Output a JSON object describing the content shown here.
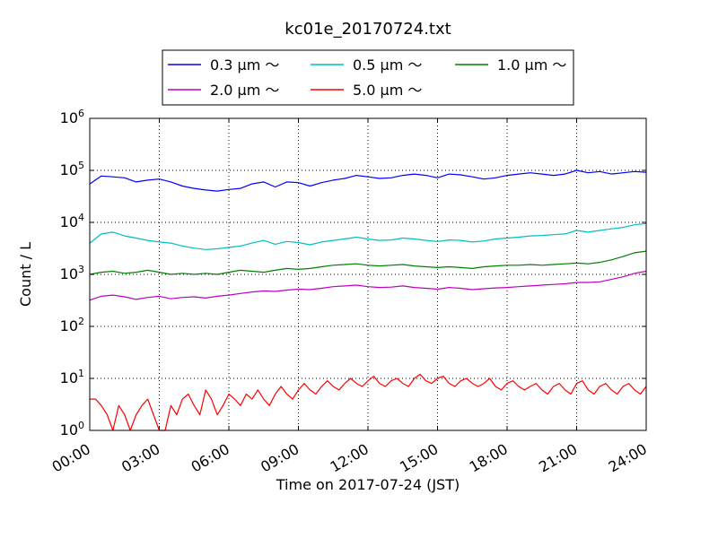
{
  "chart_data": {
    "type": "line",
    "title": "kc01e_20170724.txt",
    "xlabel": "Time on 2017-07-24 (JST)",
    "ylabel": "Count / L",
    "yscale": "log",
    "ylim": [
      1,
      1000000
    ],
    "xlim_hours": [
      0,
      24
    ],
    "x_ticks": [
      "00:00",
      "03:00",
      "06:00",
      "09:00",
      "12:00",
      "15:00",
      "18:00",
      "21:00",
      "24:00"
    ],
    "y_ticks": [
      {
        "base": "10",
        "exp": "0"
      },
      {
        "base": "10",
        "exp": "1"
      },
      {
        "base": "10",
        "exp": "2"
      },
      {
        "base": "10",
        "exp": "3"
      },
      {
        "base": "10",
        "exp": "4"
      },
      {
        "base": "10",
        "exp": "5"
      },
      {
        "base": "10",
        "exp": "6"
      }
    ],
    "grid": true,
    "legend_position": "top-center",
    "series": [
      {
        "name": "0.3 μm ～",
        "color": "#0000ff",
        "points": [
          [
            0,
            55000
          ],
          [
            0.5,
            78000
          ],
          [
            1,
            75000
          ],
          [
            1.5,
            72000
          ],
          [
            2,
            60000
          ],
          [
            2.5,
            65000
          ],
          [
            3,
            68000
          ],
          [
            3.5,
            60000
          ],
          [
            4,
            50000
          ],
          [
            4.5,
            45000
          ],
          [
            5,
            42000
          ],
          [
            5.5,
            40000
          ],
          [
            6,
            43000
          ],
          [
            6.5,
            45000
          ],
          [
            7,
            55000
          ],
          [
            7.5,
            60000
          ],
          [
            8,
            48000
          ],
          [
            8.5,
            60000
          ],
          [
            9,
            58000
          ],
          [
            9.5,
            50000
          ],
          [
            10,
            58000
          ],
          [
            10.5,
            65000
          ],
          [
            11,
            70000
          ],
          [
            11.5,
            80000
          ],
          [
            12,
            75000
          ],
          [
            12.5,
            70000
          ],
          [
            13,
            72000
          ],
          [
            13.5,
            80000
          ],
          [
            14,
            85000
          ],
          [
            14.5,
            80000
          ],
          [
            15,
            72000
          ],
          [
            15.5,
            85000
          ],
          [
            16,
            82000
          ],
          [
            16.5,
            75000
          ],
          [
            17,
            68000
          ],
          [
            17.5,
            72000
          ],
          [
            18,
            80000
          ],
          [
            18.5,
            85000
          ],
          [
            19,
            90000
          ],
          [
            19.5,
            85000
          ],
          [
            20,
            80000
          ],
          [
            20.5,
            85000
          ],
          [
            21,
            100000
          ],
          [
            21.5,
            90000
          ],
          [
            22,
            95000
          ],
          [
            22.5,
            85000
          ],
          [
            23,
            90000
          ],
          [
            23.5,
            95000
          ],
          [
            24,
            92000
          ]
        ]
      },
      {
        "name": "0.5 μm ～",
        "color": "#00bfbf",
        "points": [
          [
            0,
            4000
          ],
          [
            0.5,
            6000
          ],
          [
            1,
            6500
          ],
          [
            1.5,
            5500
          ],
          [
            2,
            5000
          ],
          [
            2.5,
            4500
          ],
          [
            3,
            4200
          ],
          [
            3.5,
            4000
          ],
          [
            4,
            3500
          ],
          [
            4.5,
            3200
          ],
          [
            5,
            3000
          ],
          [
            5.5,
            3100
          ],
          [
            6,
            3300
          ],
          [
            6.5,
            3500
          ],
          [
            7,
            4000
          ],
          [
            7.5,
            4500
          ],
          [
            8,
            3800
          ],
          [
            8.5,
            4300
          ],
          [
            9,
            4100
          ],
          [
            9.5,
            3700
          ],
          [
            10,
            4200
          ],
          [
            10.5,
            4500
          ],
          [
            11,
            4800
          ],
          [
            11.5,
            5200
          ],
          [
            12,
            4800
          ],
          [
            12.5,
            4500
          ],
          [
            13,
            4600
          ],
          [
            13.5,
            5000
          ],
          [
            14,
            4800
          ],
          [
            14.5,
            4500
          ],
          [
            15,
            4300
          ],
          [
            15.5,
            4600
          ],
          [
            16,
            4500
          ],
          [
            16.5,
            4200
          ],
          [
            17,
            4400
          ],
          [
            17.5,
            4800
          ],
          [
            18,
            5000
          ],
          [
            18.5,
            5200
          ],
          [
            19,
            5500
          ],
          [
            19.5,
            5600
          ],
          [
            20,
            5800
          ],
          [
            20.5,
            6000
          ],
          [
            21,
            7000
          ],
          [
            21.5,
            6500
          ],
          [
            22,
            7000
          ],
          [
            22.5,
            7500
          ],
          [
            23,
            8000
          ],
          [
            23.5,
            9000
          ],
          [
            24,
            9500
          ]
        ]
      },
      {
        "name": "1.0 μm ～",
        "color": "#008000",
        "points": [
          [
            0,
            1000
          ],
          [
            0.5,
            1100
          ],
          [
            1,
            1150
          ],
          [
            1.5,
            1050
          ],
          [
            2,
            1100
          ],
          [
            2.5,
            1200
          ],
          [
            3,
            1100
          ],
          [
            3.5,
            1000
          ],
          [
            4,
            1050
          ],
          [
            4.5,
            1000
          ],
          [
            5,
            1050
          ],
          [
            5.5,
            1000
          ],
          [
            6,
            1100
          ],
          [
            6.5,
            1200
          ],
          [
            7,
            1150
          ],
          [
            7.5,
            1100
          ],
          [
            8,
            1200
          ],
          [
            8.5,
            1300
          ],
          [
            9,
            1250
          ],
          [
            9.5,
            1300
          ],
          [
            10,
            1400
          ],
          [
            10.5,
            1500
          ],
          [
            11,
            1550
          ],
          [
            11.5,
            1600
          ],
          [
            12,
            1500
          ],
          [
            12.5,
            1450
          ],
          [
            13,
            1500
          ],
          [
            13.5,
            1550
          ],
          [
            14,
            1450
          ],
          [
            14.5,
            1400
          ],
          [
            15,
            1350
          ],
          [
            15.5,
            1400
          ],
          [
            16,
            1350
          ],
          [
            16.5,
            1300
          ],
          [
            17,
            1400
          ],
          [
            17.5,
            1450
          ],
          [
            18,
            1500
          ],
          [
            18.5,
            1500
          ],
          [
            19,
            1550
          ],
          [
            19.5,
            1500
          ],
          [
            20,
            1550
          ],
          [
            20.5,
            1600
          ],
          [
            21,
            1650
          ],
          [
            21.5,
            1600
          ],
          [
            22,
            1700
          ],
          [
            22.5,
            1900
          ],
          [
            23,
            2200
          ],
          [
            23.5,
            2600
          ],
          [
            24,
            2800
          ]
        ]
      },
      {
        "name": "2.0 μm ～",
        "color": "#bf00bf",
        "points": [
          [
            0,
            320
          ],
          [
            0.5,
            380
          ],
          [
            1,
            400
          ],
          [
            1.5,
            370
          ],
          [
            2,
            330
          ],
          [
            2.5,
            360
          ],
          [
            3,
            380
          ],
          [
            3.5,
            340
          ],
          [
            4,
            360
          ],
          [
            4.5,
            370
          ],
          [
            5,
            350
          ],
          [
            5.5,
            380
          ],
          [
            6,
            400
          ],
          [
            6.5,
            430
          ],
          [
            7,
            460
          ],
          [
            7.5,
            480
          ],
          [
            8,
            470
          ],
          [
            8.5,
            500
          ],
          [
            9,
            520
          ],
          [
            9.5,
            510
          ],
          [
            10,
            540
          ],
          [
            10.5,
            580
          ],
          [
            11,
            600
          ],
          [
            11.5,
            620
          ],
          [
            12,
            580
          ],
          [
            12.5,
            560
          ],
          [
            13,
            570
          ],
          [
            13.5,
            600
          ],
          [
            14,
            560
          ],
          [
            14.5,
            540
          ],
          [
            15,
            520
          ],
          [
            15.5,
            560
          ],
          [
            16,
            540
          ],
          [
            16.5,
            510
          ],
          [
            17,
            530
          ],
          [
            17.5,
            550
          ],
          [
            18,
            560
          ],
          [
            18.5,
            580
          ],
          [
            19,
            600
          ],
          [
            19.5,
            620
          ],
          [
            20,
            640
          ],
          [
            20.5,
            660
          ],
          [
            21,
            700
          ],
          [
            21.5,
            700
          ],
          [
            22,
            720
          ],
          [
            22.5,
            800
          ],
          [
            23,
            900
          ],
          [
            23.5,
            1050
          ],
          [
            24,
            1150
          ]
        ]
      },
      {
        "name": "5.0 μm ～",
        "color": "#ff0000",
        "points": [
          [
            0,
            4
          ],
          [
            0.25,
            4
          ],
          [
            0.5,
            3
          ],
          [
            0.75,
            2
          ],
          [
            1,
            1
          ],
          [
            1.25,
            3
          ],
          [
            1.5,
            2
          ],
          [
            1.75,
            1
          ],
          [
            2,
            2
          ],
          [
            2.25,
            3
          ],
          [
            2.5,
            4
          ],
          [
            2.75,
            2
          ],
          [
            3,
            1
          ],
          [
            3.25,
            1
          ],
          [
            3.5,
            3
          ],
          [
            3.75,
            2
          ],
          [
            4,
            4
          ],
          [
            4.25,
            5
          ],
          [
            4.5,
            3
          ],
          [
            4.75,
            2
          ],
          [
            5,
            6
          ],
          [
            5.25,
            4
          ],
          [
            5.5,
            2
          ],
          [
            5.75,
            3
          ],
          [
            6,
            5
          ],
          [
            6.25,
            4
          ],
          [
            6.5,
            3
          ],
          [
            6.75,
            5
          ],
          [
            7,
            4
          ],
          [
            7.25,
            6
          ],
          [
            7.5,
            4
          ],
          [
            7.75,
            3
          ],
          [
            8,
            5
          ],
          [
            8.25,
            7
          ],
          [
            8.5,
            5
          ],
          [
            8.75,
            4
          ],
          [
            9,
            6
          ],
          [
            9.25,
            8
          ],
          [
            9.5,
            6
          ],
          [
            9.75,
            5
          ],
          [
            10,
            7
          ],
          [
            10.25,
            9
          ],
          [
            10.5,
            7
          ],
          [
            10.75,
            6
          ],
          [
            11,
            8
          ],
          [
            11.25,
            10
          ],
          [
            11.5,
            8
          ],
          [
            11.75,
            7
          ],
          [
            12,
            9
          ],
          [
            12.25,
            11
          ],
          [
            12.5,
            8
          ],
          [
            12.75,
            7
          ],
          [
            13,
            9
          ],
          [
            13.25,
            10
          ],
          [
            13.5,
            8
          ],
          [
            13.75,
            7
          ],
          [
            14,
            10
          ],
          [
            14.25,
            12
          ],
          [
            14.5,
            9
          ],
          [
            14.75,
            8
          ],
          [
            15,
            10
          ],
          [
            15.25,
            11
          ],
          [
            15.5,
            8
          ],
          [
            15.75,
            7
          ],
          [
            16,
            9
          ],
          [
            16.25,
            10
          ],
          [
            16.5,
            8
          ],
          [
            16.75,
            7
          ],
          [
            17,
            8
          ],
          [
            17.25,
            10
          ],
          [
            17.5,
            7
          ],
          [
            17.75,
            6
          ],
          [
            18,
            8
          ],
          [
            18.25,
            9
          ],
          [
            18.5,
            7
          ],
          [
            18.75,
            6
          ],
          [
            19,
            7
          ],
          [
            19.25,
            8
          ],
          [
            19.5,
            6
          ],
          [
            19.75,
            5
          ],
          [
            20,
            7
          ],
          [
            20.25,
            8
          ],
          [
            20.5,
            6
          ],
          [
            20.75,
            5
          ],
          [
            21,
            8
          ],
          [
            21.25,
            9
          ],
          [
            21.5,
            6
          ],
          [
            21.75,
            5
          ],
          [
            22,
            7
          ],
          [
            22.25,
            8
          ],
          [
            22.5,
            6
          ],
          [
            22.75,
            5
          ],
          [
            23,
            7
          ],
          [
            23.25,
            8
          ],
          [
            23.5,
            6
          ],
          [
            23.75,
            5
          ],
          [
            24,
            7
          ]
        ]
      }
    ]
  }
}
